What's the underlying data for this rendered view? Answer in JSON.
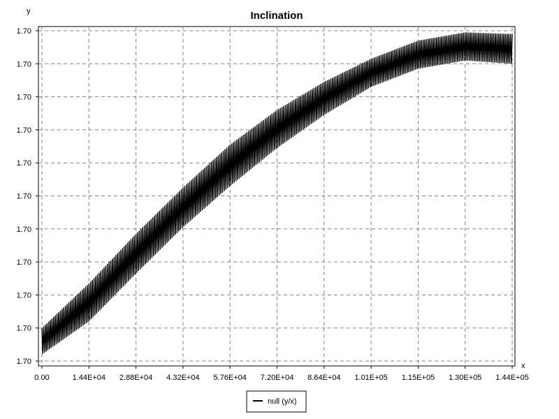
{
  "chart_data": {
    "type": "line",
    "title": "Inclination",
    "xlabel": "x",
    "ylabel": "y",
    "xlim": [
      0,
      144000
    ],
    "ylim": [
      0,
      10
    ],
    "grid": true,
    "legend_position": "bottom",
    "x_ticks": [
      {
        "value": 0,
        "label": "0.00"
      },
      {
        "value": 14400,
        "label": "1.44E+04"
      },
      {
        "value": 28800,
        "label": "2.88E+04"
      },
      {
        "value": 43200,
        "label": "4.32E+04"
      },
      {
        "value": 57600,
        "label": "5.76E+04"
      },
      {
        "value": 72000,
        "label": "7.20E+04"
      },
      {
        "value": 86400,
        "label": "8.64E+04"
      },
      {
        "value": 100800,
        "label": "1.01E+05"
      },
      {
        "value": 115200,
        "label": "1.15E+05"
      },
      {
        "value": 129600,
        "label": "1.30E+05"
      },
      {
        "value": 144000,
        "label": "1.44E+05"
      }
    ],
    "y_ticks": [
      {
        "value": 0,
        "label": "1.70"
      },
      {
        "value": 1,
        "label": "1.70"
      },
      {
        "value": 2,
        "label": "1.70"
      },
      {
        "value": 3,
        "label": "1.70"
      },
      {
        "value": 4,
        "label": "1.70"
      },
      {
        "value": 5,
        "label": "1.70"
      },
      {
        "value": 6,
        "label": "1.70"
      },
      {
        "value": 7,
        "label": "1.70"
      },
      {
        "value": 8,
        "label": "1.70"
      },
      {
        "value": 9,
        "label": "1.70"
      },
      {
        "value": 10,
        "label": "1.70"
      }
    ],
    "series": [
      {
        "name": "null (y/x)",
        "color": "#000000",
        "band": {
          "x": [
            0,
            14400,
            28800,
            43200,
            57600,
            72000,
            86400,
            100800,
            115200,
            129600,
            144000
          ],
          "upper": [
            1.0,
            2.35,
            3.85,
            5.25,
            6.55,
            7.6,
            8.45,
            9.15,
            9.7,
            9.95,
            9.9
          ],
          "lower": [
            0.2,
            1.2,
            2.65,
            4.05,
            5.3,
            6.45,
            7.45,
            8.3,
            8.85,
            9.1,
            9.0
          ]
        }
      }
    ]
  }
}
